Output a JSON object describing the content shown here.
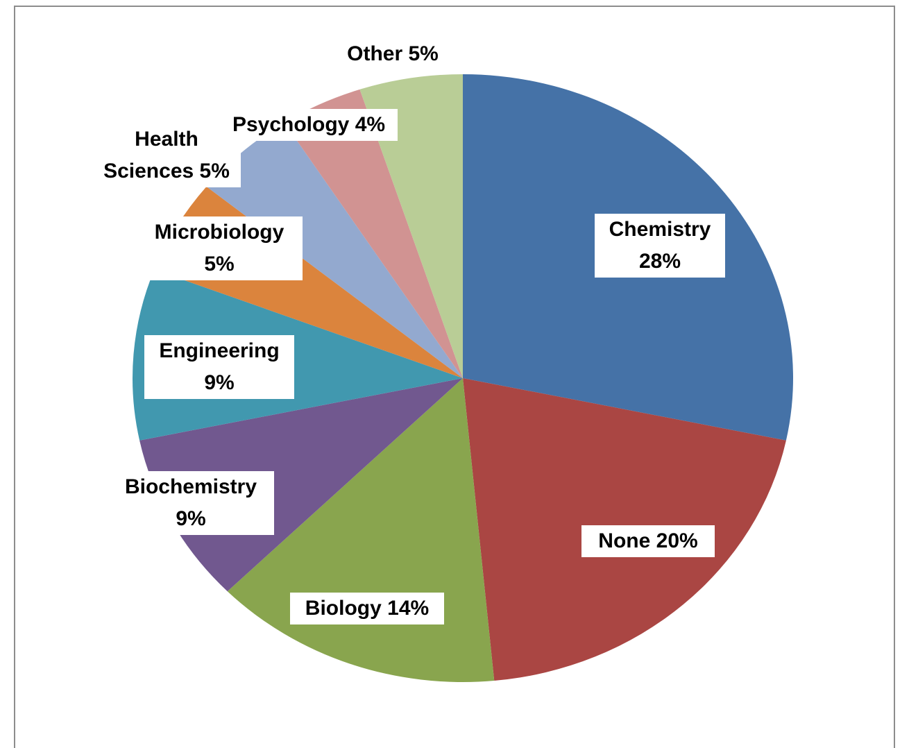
{
  "chart_data": {
    "type": "pie",
    "categories": [
      "Chemistry",
      "None",
      "Biology",
      "Biochemistry",
      "Engineering",
      "Microbiology",
      "Health Sciences",
      "Psychology",
      "Other"
    ],
    "values": [
      28,
      20,
      14,
      9,
      9,
      5,
      5,
      4,
      5
    ],
    "value_labels": [
      "28%",
      "20%",
      "14%",
      "9%",
      "9%",
      "5%",
      "5%",
      "4%",
      "5%"
    ],
    "colors": [
      "#4572a7",
      "#aa4643",
      "#89a54e",
      "#71588f",
      "#4198af",
      "#db843d",
      "#93a9cf",
      "#d19392",
      "#b9cd96"
    ]
  }
}
